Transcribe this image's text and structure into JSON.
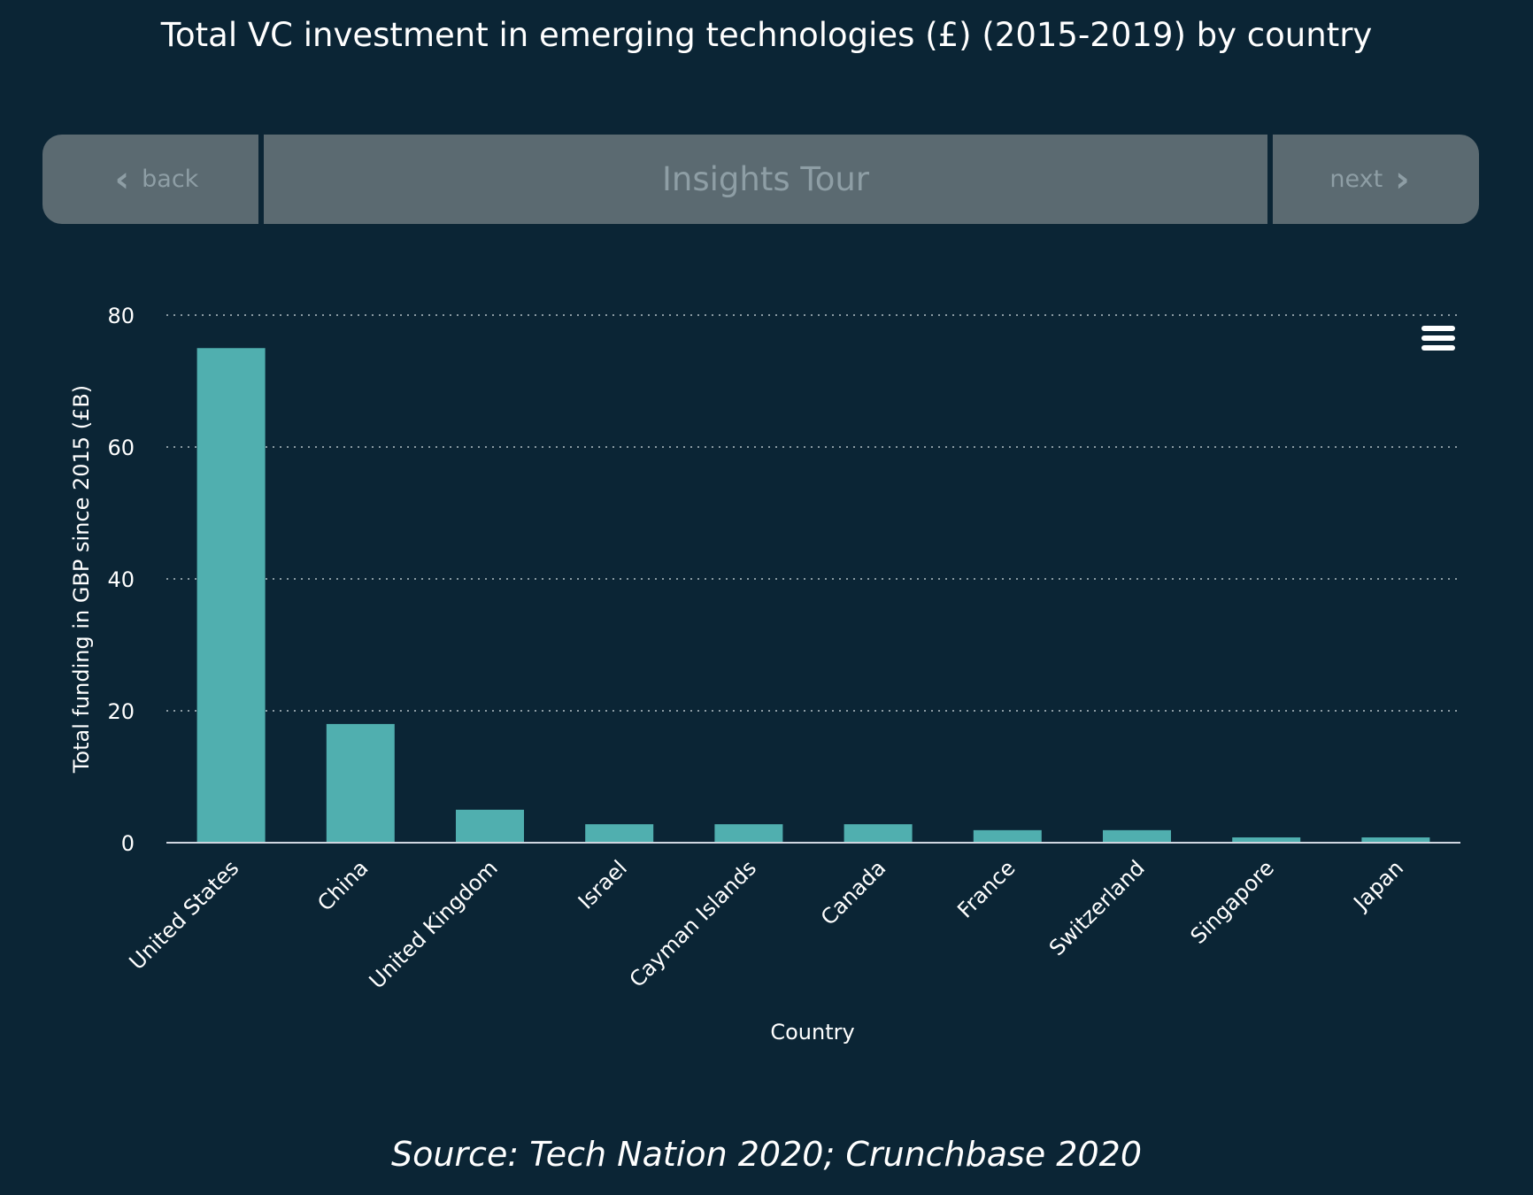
{
  "title": "Total VC investment in emerging technologies (£) (2015-2019) by country",
  "nav": {
    "back_label": "back",
    "center_label": "Insights Tour",
    "next_label": "next",
    "back_icon": "chevron-left-icon",
    "next_icon": "chevron-right-icon"
  },
  "menu_icon": "hamburger-menu-icon",
  "source": "Source: Tech Nation 2020; Crunchbase 2020",
  "chart_data": {
    "type": "bar",
    "title": "Total VC investment in emerging technologies (£) (2015-2019) by country",
    "xlabel": "Country",
    "ylabel": "Total funding in GBP since 2015 (£B)",
    "categories": [
      "United States",
      "China",
      "United Kingdom",
      "Israel",
      "Cayman Islands",
      "Canada",
      "France",
      "Switzerland",
      "Singapore",
      "Japan"
    ],
    "values": [
      75,
      18,
      5,
      2.8,
      2.8,
      2.8,
      1.9,
      1.9,
      0.8,
      0.8
    ],
    "ylim": [
      0,
      80
    ],
    "yticks": [
      "0",
      "20",
      "40",
      "60",
      "80"
    ],
    "grid": true,
    "bar_color": "#50afaf",
    "background": "#0b2535"
  }
}
